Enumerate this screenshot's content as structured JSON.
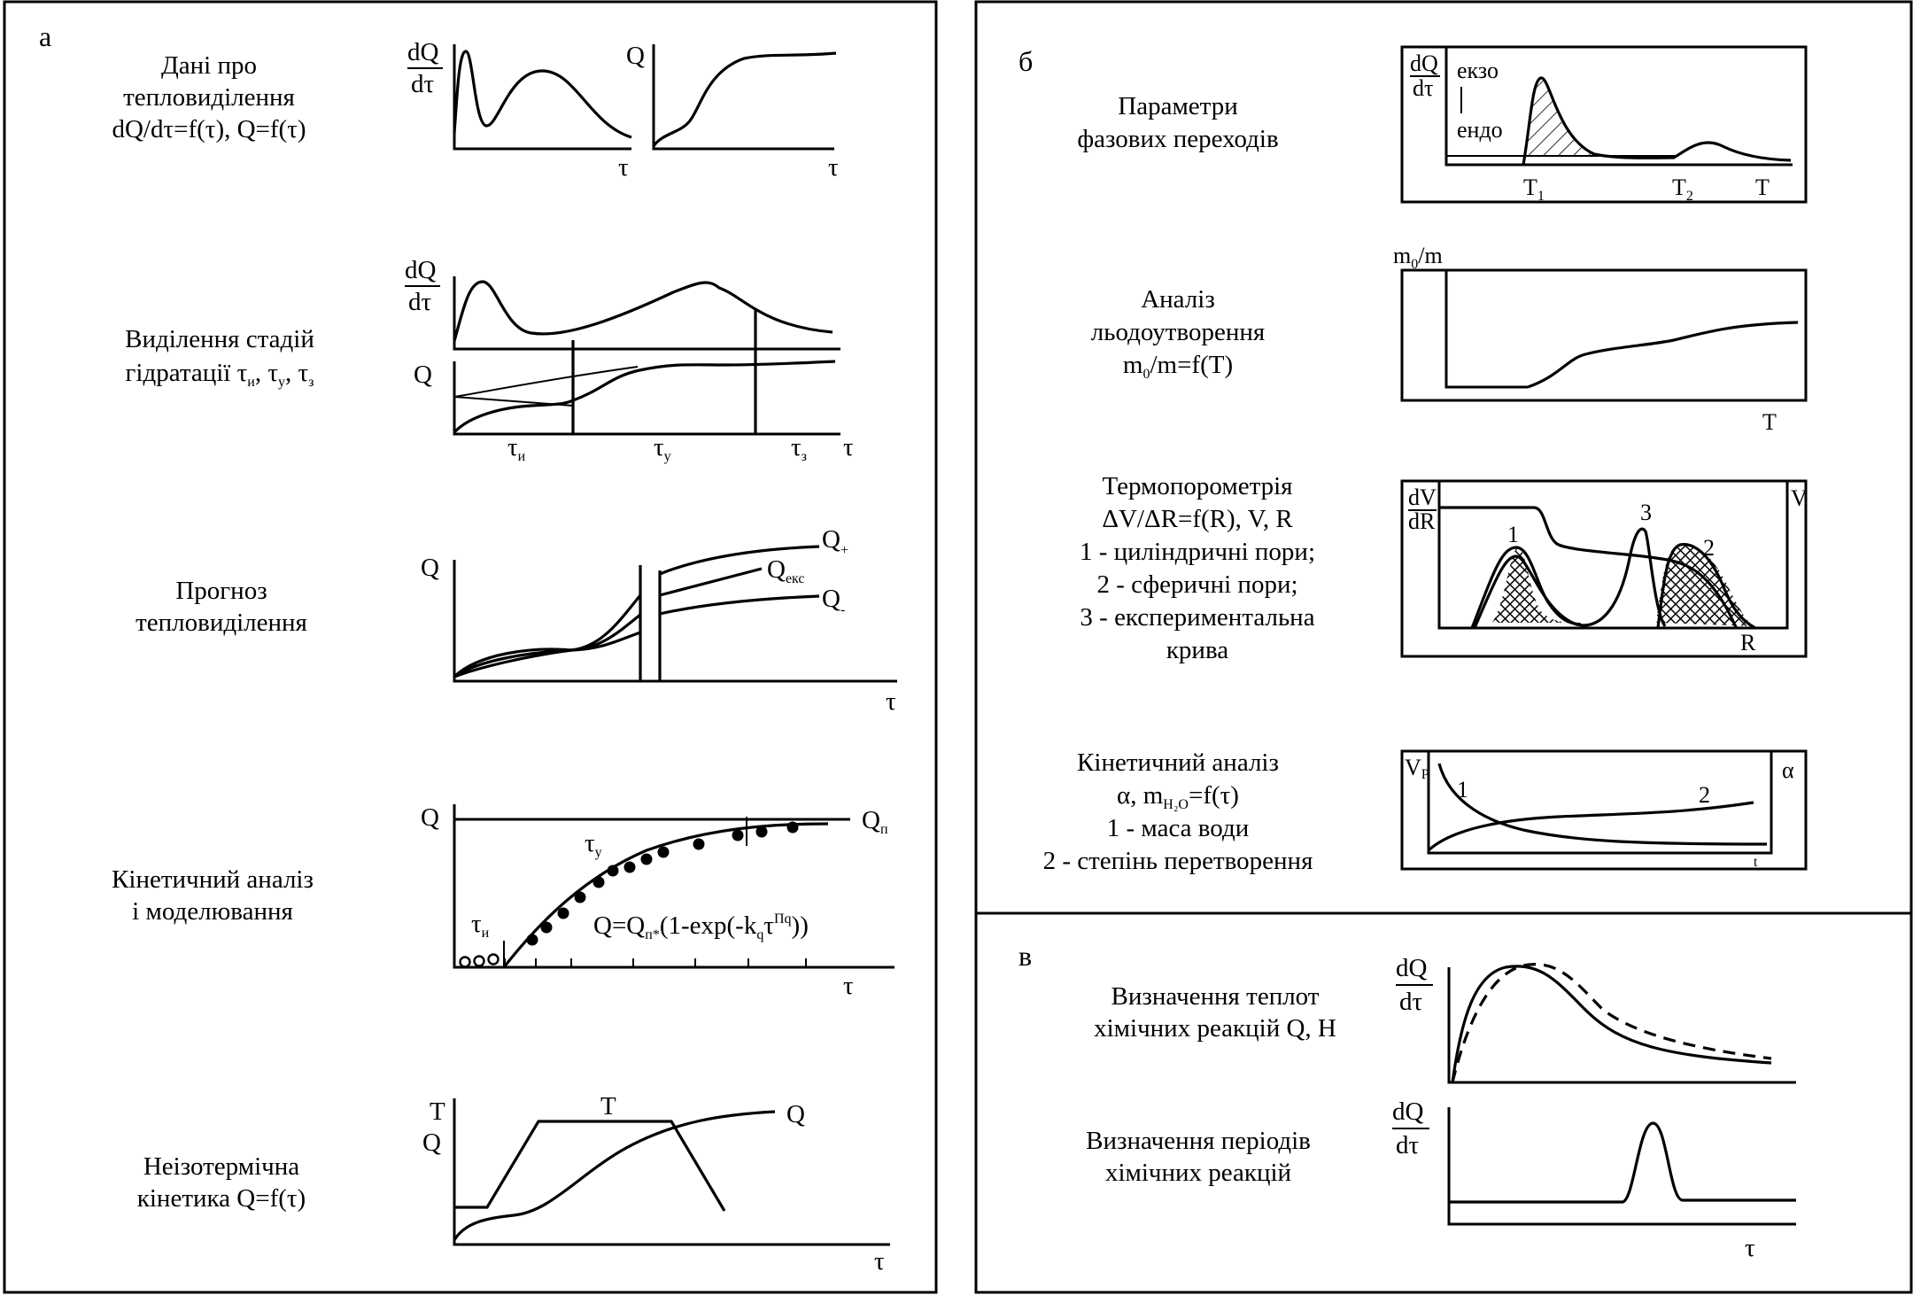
{
  "panels": {
    "a": {
      "letter": "а",
      "rows": [
        {
          "desc": [
            "Дані про",
            "тепловиділення",
            "dQ/dτ=f(τ), Q=f(τ)"
          ],
          "labels": {
            "dq_num": "dQ",
            "dq_den": "dτ",
            "tau1": "τ",
            "q": "Q",
            "tau2": "τ"
          }
        },
        {
          "desc": [
            "Виділення стадій",
            "гідратації"
          ],
          "desc_tail": {
            "t": "τ",
            "i": "и",
            "sep": ", ",
            "y": "у",
            "z": "з"
          },
          "labels": {
            "dq_num": "dQ",
            "dq_den": "dτ",
            "q": "Q",
            "tau": "τ",
            "t": "τ",
            "i": "и",
            "y": "у",
            "z": "з"
          }
        },
        {
          "desc": [
            "Прогноз",
            "тепловиділення"
          ],
          "labels": {
            "q": "Q",
            "tau": "τ",
            "q_plus": "Q",
            "plus": "+",
            "q_eks": "Q",
            "eks": "екс",
            "q_minus": "Q",
            "minus": "-"
          }
        },
        {
          "desc": [
            "Кінетичний аналіз",
            "і моделювання"
          ],
          "labels": {
            "q": "Q",
            "qp": "Q",
            "p": "п",
            "tau": "τ",
            "t": "τ",
            "i": "и",
            "y": "у",
            "formula_a": "Q=Q",
            "formula_sub": "п*",
            "formula_b": "(1-exp(-k",
            "formula_q": "q",
            "formula_c": "τ",
            "formula_sup": "Пq",
            "formula_d": "))"
          }
        },
        {
          "desc": [
            "Неізотермічна",
            "кінетика Q=f(τ)"
          ],
          "labels": {
            "t_axis": "T",
            "q_axis": "Q",
            "t_curve": "T",
            "q_curve": "Q",
            "tau": "τ"
          }
        }
      ]
    },
    "b": {
      "letter": "б",
      "rows": [
        {
          "desc": [
            "Параметри",
            "фазових переходів"
          ],
          "labels": {
            "dq_num": "dQ",
            "dq_den": "dτ",
            "ekzo": "екзо",
            "endo": "ендо",
            "T": "T",
            "one": "1",
            "two": "2"
          }
        },
        {
          "desc": [
            "Аналіз",
            "льодоутворення"
          ],
          "desc_tail": {
            "m": "m",
            "zero": "0",
            "rest": "/m=f(T)"
          },
          "labels": {
            "m": "m",
            "zero": "0",
            "rest": "/m",
            "T": "T"
          }
        },
        {
          "desc": [
            "Термопорометрія",
            "ΔV/ΔR=f(R), V, R",
            "1 - циліндричні пори;",
            "2 - сферичні пори;",
            "3 - експериментальна",
            "крива"
          ],
          "labels": {
            "dv": "dV",
            "dr": "dR",
            "v": "V",
            "r": "R",
            "c1": "1",
            "c2": "2",
            "c3": "3"
          }
        },
        {
          "desc": [
            "Кінетичний аналіз",
            "2 - степінь перетворення"
          ],
          "desc_mid": {
            "alpha": "α, m",
            "h2o": "H₂O",
            "rest": "=f(τ)",
            "line3": "1 - маса води"
          },
          "labels": {
            "v": "V",
            "p": "P",
            "alpha": "α",
            "c1": "1",
            "c2": "2",
            "t": "t"
          }
        }
      ]
    },
    "c": {
      "letter": "в",
      "rows": [
        {
          "desc": [
            "Визначення теплот",
            "хімічних реакцій Q, H"
          ],
          "labels": {
            "dq_num": "dQ",
            "dq_den": "dτ"
          }
        },
        {
          "desc": [
            "Визначення періодів",
            "хімічних реакцій"
          ],
          "labels": {
            "dq_num": "dQ",
            "dq_den": "dτ",
            "tau": "τ"
          }
        }
      ]
    }
  }
}
